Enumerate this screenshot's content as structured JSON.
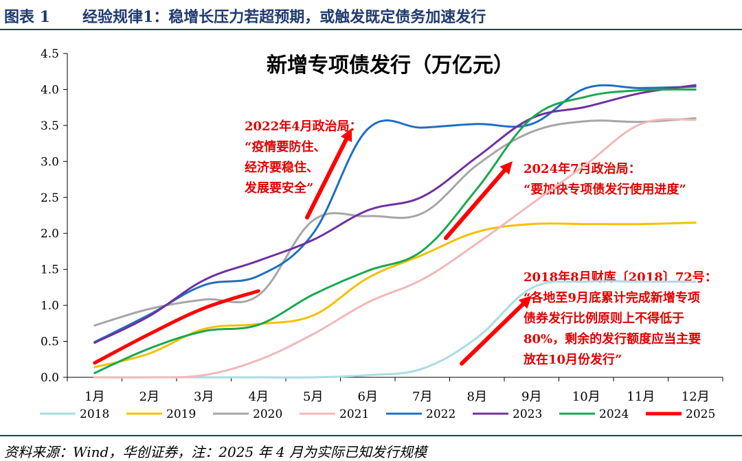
{
  "header": {
    "figure_number": "图表 1",
    "title": "经验规律1：稳增长压力若超预期，或触发既定债务加速发行"
  },
  "footer": {
    "source": "资料来源：Wind，华创证券，注：2025 年 4 月为实际已知发行规模"
  },
  "chart_data": {
    "type": "line",
    "title": "新增专项债发行（万亿元）",
    "categories": [
      "1月",
      "2月",
      "3月",
      "4月",
      "5月",
      "6月",
      "7月",
      "8月",
      "9月",
      "10月",
      "11月",
      "12月"
    ],
    "yticks": [
      "0.0",
      "0.5",
      "1.0",
      "1.5",
      "2.0",
      "2.5",
      "3.0",
      "3.5",
      "4.0",
      "4.5"
    ],
    "ylim": [
      0,
      4.5
    ],
    "grid": false,
    "legend_position": "bottom",
    "series": [
      {
        "name": "2018",
        "color": "#a8dde3",
        "width": 3,
        "values": [
          0,
          0,
          0,
          0,
          0,
          0.03,
          0.12,
          0.55,
          1.24,
          1.33,
          1.33,
          1.33
        ]
      },
      {
        "name": "2019",
        "color": "#f6c000",
        "width": 3,
        "values": [
          0.14,
          0.33,
          0.67,
          0.74,
          0.86,
          1.38,
          1.7,
          2.02,
          2.13,
          2.13,
          2.13,
          2.15
        ]
      },
      {
        "name": "2020",
        "color": "#a6a6a6",
        "width": 3,
        "values": [
          0.72,
          0.95,
          1.08,
          1.14,
          2.18,
          2.24,
          2.28,
          2.95,
          3.41,
          3.56,
          3.55,
          3.6
        ]
      },
      {
        "name": "2021",
        "color": "#f2b8b8",
        "width": 3,
        "values": [
          0,
          0,
          0.03,
          0.24,
          0.6,
          1.04,
          1.36,
          1.86,
          2.41,
          2.96,
          3.52,
          3.58
        ]
      },
      {
        "name": "2022",
        "color": "#1f6fc1",
        "width": 3,
        "values": [
          0.49,
          0.87,
          1.28,
          1.41,
          2.0,
          3.45,
          3.47,
          3.52,
          3.52,
          4.02,
          4.02,
          4.04
        ]
      },
      {
        "name": "2023",
        "color": "#7030a0",
        "width": 3,
        "values": [
          0.48,
          0.85,
          1.35,
          1.62,
          1.91,
          2.32,
          2.51,
          3.06,
          3.6,
          3.76,
          3.95,
          4.06
        ]
      },
      {
        "name": "2024",
        "color": "#1aa84f",
        "width": 3,
        "values": [
          0.06,
          0.4,
          0.64,
          0.73,
          1.15,
          1.48,
          1.76,
          2.62,
          3.6,
          3.9,
          3.99,
          4.0
        ]
      },
      {
        "name": "2025",
        "color": "#ff0000",
        "width": 5,
        "values": [
          0.2,
          0.6,
          0.96,
          1.2,
          null,
          null,
          null,
          null,
          null,
          null,
          null,
          null
        ]
      }
    ],
    "annotations": [
      {
        "lines": [
          "2022年4月政治局：",
          "“疫情要防住、",
          "经济要稳住、",
          "发展要安全”"
        ],
        "color": "#e00000"
      },
      {
        "lines": [
          "2024年7月政治局：",
          "“要加快专项债发行使用进度”"
        ],
        "color": "#e00000"
      },
      {
        "lines": [
          "2018年8月财库〔2018〕72号：",
          "“各地至9月底累计完成新增专项",
          "债券发行比例原则上不得低于",
          "80%，剩余的发行额度应当主要",
          "放在10月份发行”"
        ],
        "color": "#e00000"
      }
    ]
  }
}
